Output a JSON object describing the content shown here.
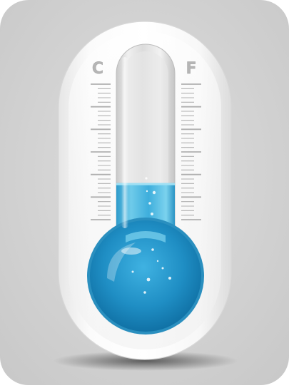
{
  "scale": {
    "left_unit": "C",
    "right_unit": "F",
    "fill_level": 0.38
  },
  "colors": {
    "background": "#d4d4d4",
    "body": "#f4f4f4",
    "liquid": "#48b6dc",
    "bulb": "#1f8ec4",
    "tick": "#b0b0b0"
  },
  "icon": "thermometer-icon"
}
